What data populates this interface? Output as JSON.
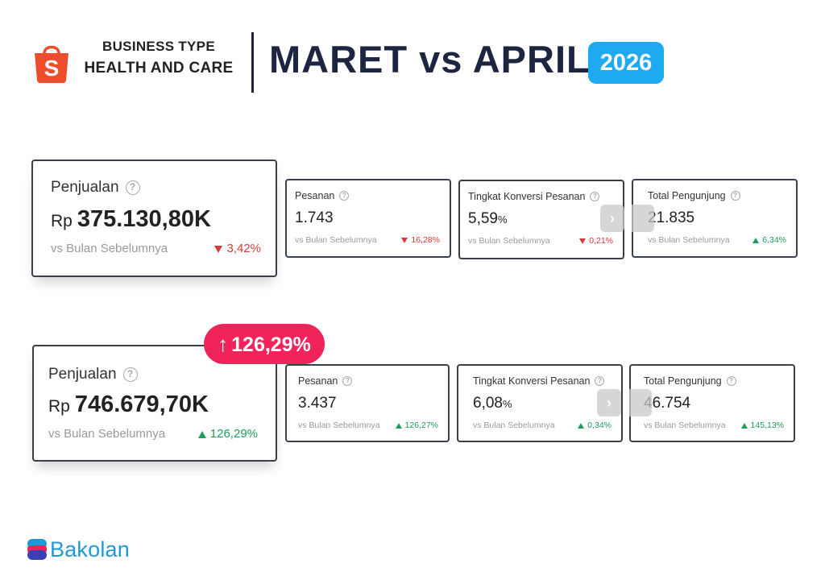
{
  "header": {
    "business_type_label": "BUSINESS TYPE",
    "business_type_value": "HEALTH AND CARE",
    "title": "MARET vs APRIL",
    "year": "2026"
  },
  "icons": {
    "logo": "shopee-bag-icon",
    "help": "question-circle-icon",
    "nav": "chevron-right-icon",
    "up": "triangle-up-icon",
    "down": "triangle-down-icon",
    "growth": "arrow-up-icon"
  },
  "colors": {
    "accent_blue": "#1eaaf1",
    "shopee_orange": "#ee4d2d",
    "growth_pink": "#f0245a",
    "down_red": "#d63a3a",
    "up_green": "#1e9e5a"
  },
  "help_glyph": "?",
  "nav_glyph": "›",
  "growth_arrow": "↑",
  "row1": {
    "sales": {
      "label": "Penjualan",
      "currency": "Rp",
      "value": "375.130,80K",
      "sub": "vs Bulan Sebelumnya",
      "change": "3,42%",
      "direction": "down"
    },
    "orders": {
      "label": "Pesanan",
      "value": "1.743",
      "sub": "vs Bulan Sebelumnya",
      "change": "16,28%",
      "direction": "down"
    },
    "conversion": {
      "label": "Tingkat Konversi Pesanan",
      "value": "5,59",
      "unit": "%",
      "sub": "vs Bulan Sebelumnya",
      "change": "0,21%",
      "direction": "down"
    },
    "visitors": {
      "label": "Total Pengunjung",
      "value": "21.835",
      "sub": "vs Bulan Sebelumnya",
      "change": "6,34%",
      "direction": "up"
    }
  },
  "row2": {
    "growth_badge": "126,29%",
    "sales": {
      "label": "Penjualan",
      "currency": "Rp",
      "value": "746.679,70K",
      "sub": "vs Bulan Sebelumnya",
      "change": "126,29%",
      "direction": "up"
    },
    "orders": {
      "label": "Pesanan",
      "value": "3.437",
      "sub": "vs Bulan Sebelumnya",
      "change": "126,27%",
      "direction": "up"
    },
    "conversion": {
      "label": "Tingkat Konversi Pesanan",
      "value": "6,08",
      "unit": "%",
      "sub": "vs Bulan Sebelumnya",
      "change": "0,34%",
      "direction": "up"
    },
    "visitors": {
      "label": "Total Pengunjung",
      "value": "46.754",
      "sub": "vs Bulan Sebelumnya",
      "change": "145,13%",
      "direction": "up"
    }
  },
  "brand": {
    "name": "Bakolan"
  }
}
